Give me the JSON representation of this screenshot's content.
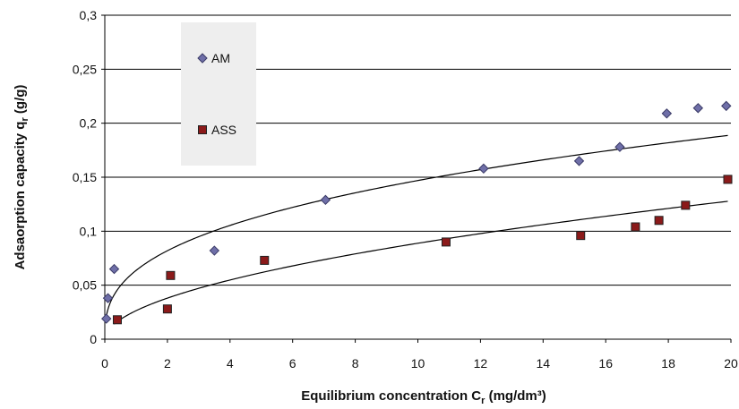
{
  "chart_data": {
    "type": "scatter",
    "xlabel": "Equilibrium concentration C",
    "xlabel_subscript": "r",
    "xlabel_unit": " (mg/dm³)",
    "ylabel": "Adsaorption capacity q",
    "ylabel_subscript": "r",
    "ylabel_unit": " (g/g)",
    "xlim": [
      0,
      20
    ],
    "ylim": [
      0,
      0.3
    ],
    "x_ticks": [
      "0",
      "2",
      "4",
      "6",
      "8",
      "10",
      "12",
      "14",
      "16",
      "18",
      "20"
    ],
    "y_ticks": [
      "0",
      "0,05",
      "0,1",
      "0,15",
      "0,2",
      "0,25",
      "0,3"
    ],
    "grid": "horizontal",
    "legend_placement": "top-left",
    "series": [
      {
        "name": "AM",
        "marker": "diamond",
        "color": "#6f6fa8",
        "x": [
          0.05,
          0.1,
          0.3,
          3.5,
          7.05,
          12.1,
          15.15,
          16.45,
          17.95,
          18.95,
          19.85
        ],
        "y": [
          0.019,
          0.038,
          0.065,
          0.082,
          0.129,
          0.158,
          0.165,
          0.178,
          0.209,
          0.214,
          0.216
        ],
        "trend": {
          "type": "power",
          "a": 0.0637,
          "b": 0.363
        }
      },
      {
        "name": "ASS",
        "marker": "square",
        "color": "#8b1a1a",
        "x": [
          0.4,
          2.0,
          2.1,
          5.1,
          10.9,
          15.2,
          16.95,
          17.7,
          18.55,
          19.9
        ],
        "y": [
          0.018,
          0.028,
          0.059,
          0.073,
          0.09,
          0.096,
          0.104,
          0.11,
          0.124,
          0.148
        ],
        "trend": {
          "type": "power",
          "a": 0.0264,
          "b": 0.527
        }
      }
    ]
  }
}
